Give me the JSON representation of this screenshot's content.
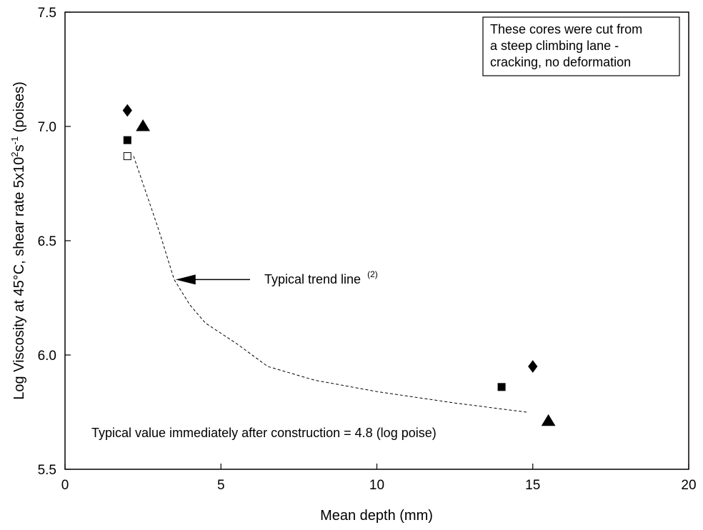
{
  "chart_data": {
    "type": "scatter",
    "xlabel": "Mean depth (mm)",
    "ylabel": {
      "prefix": "Log Viscosity at 45°C,  shear rate 5x10",
      "sup1": "2",
      "mid": "s",
      "sup2": "-1",
      "suffix": " (poises)"
    },
    "xlim": [
      0,
      20
    ],
    "ylim": [
      5.5,
      7.5
    ],
    "x_ticks": [
      0,
      5,
      10,
      15,
      20
    ],
    "y_ticks": [
      5.5,
      6.0,
      6.5,
      7.0,
      7.5
    ],
    "x_tick_labels": [
      "0",
      "5",
      "10",
      "15",
      "20"
    ],
    "y_tick_labels": [
      "5.5",
      "6.0",
      "6.5",
      "7.0",
      "7.5"
    ],
    "grid": false,
    "series": [
      {
        "marker": "diamond",
        "fill": "#000000",
        "points": [
          [
            2.0,
            7.07
          ],
          [
            15.0,
            5.95
          ]
        ]
      },
      {
        "marker": "square",
        "fill": "#000000",
        "points": [
          [
            2.0,
            6.94
          ],
          [
            14.0,
            5.86
          ]
        ]
      },
      {
        "marker": "triangle",
        "fill": "#000000",
        "points": [
          [
            2.5,
            7.0
          ],
          [
            15.5,
            5.71
          ]
        ]
      },
      {
        "marker": "square-open",
        "fill": "#ffffff",
        "points": [
          [
            2.0,
            6.87
          ]
        ]
      }
    ],
    "trend_line": {
      "style": "dashed",
      "points": [
        [
          2.2,
          6.87
        ],
        [
          2.5,
          6.75
        ],
        [
          3.0,
          6.55
        ],
        [
          3.5,
          6.33
        ],
        [
          4.0,
          6.22
        ],
        [
          4.5,
          6.14
        ],
        [
          5.5,
          6.05
        ],
        [
          6.5,
          5.95
        ],
        [
          8.0,
          5.89
        ],
        [
          10.0,
          5.84
        ],
        [
          12.5,
          5.79
        ],
        [
          14.8,
          5.75
        ]
      ]
    },
    "annotations": {
      "trend_label": "Typical trend line",
      "trend_label_sup": "(2)",
      "trend_arrow_tip": [
        3.5,
        6.33
      ],
      "construction_note": "Typical value immediately after construction = 4.8 (log poise)"
    },
    "note_box": [
      "These cores were cut from",
      "a steep climbing lane -",
      "cracking, no deformation"
    ]
  }
}
